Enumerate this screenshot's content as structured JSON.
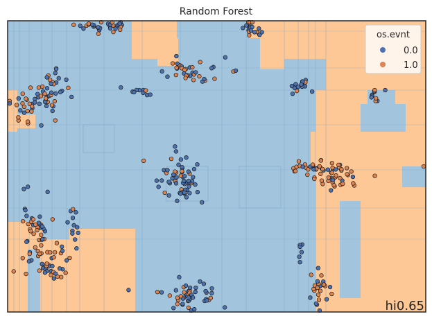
{
  "chart_data": {
    "type": "scatter",
    "title": "Random Forest",
    "xlabel": "",
    "ylabel": "",
    "grid": false,
    "legend": {
      "title": "os.evnt",
      "placement": "top-right",
      "entries": [
        {
          "label": "0.0",
          "color": "#4c72b0"
        },
        {
          "label": "1.0",
          "color": "#dd8452"
        }
      ]
    },
    "annotation": "hi0.65",
    "decision_region_colors": {
      "class_0": "#a2c5dd",
      "class_1": "#fdc896",
      "contour_line": "#7fa6c8"
    },
    "clusters": [
      {
        "cx": 0.23,
        "cy": 0.02,
        "n": 30,
        "sx": 0.035,
        "sy": 0.012,
        "orange": 0.35
      },
      {
        "cx": 0.58,
        "cy": 0.03,
        "n": 20,
        "sx": 0.015,
        "sy": 0.012,
        "orange": 0.4
      },
      {
        "cx": 0.44,
        "cy": 0.17,
        "n": 35,
        "sx": 0.04,
        "sy": 0.02,
        "orange": 0.3
      },
      {
        "cx": 0.31,
        "cy": 0.24,
        "n": 10,
        "sx": 0.025,
        "sy": 0.008,
        "orange": 0.1
      },
      {
        "cx": 0.7,
        "cy": 0.22,
        "n": 15,
        "sx": 0.012,
        "sy": 0.012,
        "orange": 0.2
      },
      {
        "cx": 0.88,
        "cy": 0.26,
        "n": 10,
        "sx": 0.008,
        "sy": 0.02,
        "orange": 0.7
      },
      {
        "cx": 0.1,
        "cy": 0.25,
        "n": 40,
        "sx": 0.02,
        "sy": 0.05,
        "orange": 0.3
      },
      {
        "cx": 0.05,
        "cy": 0.29,
        "n": 25,
        "sx": 0.03,
        "sy": 0.025,
        "orange": 0.8
      },
      {
        "cx": 0.41,
        "cy": 0.55,
        "n": 60,
        "sx": 0.025,
        "sy": 0.045,
        "orange": 0.2
      },
      {
        "cx": 0.73,
        "cy": 0.5,
        "n": 35,
        "sx": 0.035,
        "sy": 0.015,
        "orange": 0.7
      },
      {
        "cx": 0.78,
        "cy": 0.54,
        "n": 30,
        "sx": 0.03,
        "sy": 0.02,
        "orange": 0.7
      },
      {
        "cx": 0.06,
        "cy": 0.72,
        "n": 40,
        "sx": 0.02,
        "sy": 0.05,
        "orange": 0.3
      },
      {
        "cx": 0.1,
        "cy": 0.83,
        "n": 40,
        "sx": 0.03,
        "sy": 0.03,
        "orange": 0.6
      },
      {
        "cx": 0.16,
        "cy": 0.71,
        "n": 12,
        "sx": 0.008,
        "sy": 0.03,
        "orange": 0.2
      },
      {
        "cx": 0.43,
        "cy": 0.95,
        "n": 50,
        "sx": 0.035,
        "sy": 0.03,
        "orange": 0.3
      },
      {
        "cx": 0.74,
        "cy": 0.92,
        "n": 25,
        "sx": 0.015,
        "sy": 0.04,
        "orange": 0.6
      },
      {
        "cx": 0.7,
        "cy": 0.81,
        "n": 6,
        "sx": 0.004,
        "sy": 0.02,
        "orange": 0.0
      },
      {
        "cx": 0.995,
        "cy": 0.5,
        "n": 1,
        "sx": 0.0,
        "sy": 0.0,
        "orange": 1.0
      }
    ]
  }
}
